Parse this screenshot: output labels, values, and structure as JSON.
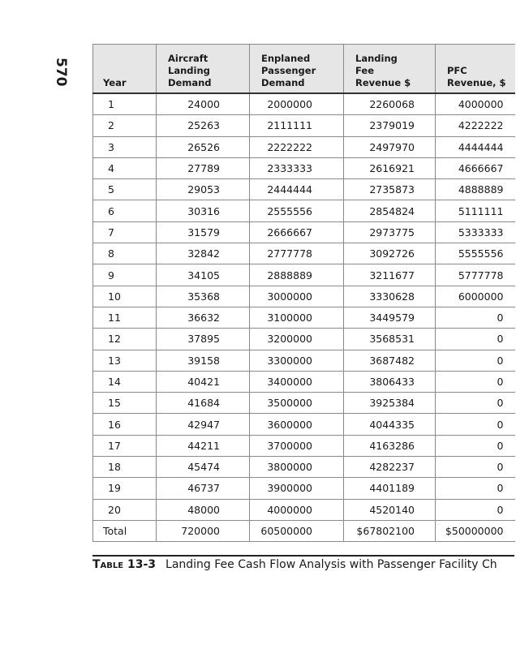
{
  "page_number": "570",
  "table": {
    "headers": [
      "Year",
      "Aircraft\nLanding\nDemand",
      "Enplaned\nPassenger\nDemand",
      "Landing\nFee\nRevenue $",
      "PFC\nRevenue, $"
    ],
    "rows": [
      [
        "1",
        "24000",
        "2000000",
        "2260068",
        "4000000"
      ],
      [
        "2",
        "25263",
        "2111111",
        "2379019",
        "4222222"
      ],
      [
        "3",
        "26526",
        "2222222",
        "2497970",
        "4444444"
      ],
      [
        "4",
        "27789",
        "2333333",
        "2616921",
        "4666667"
      ],
      [
        "5",
        "29053",
        "2444444",
        "2735873",
        "4888889"
      ],
      [
        "6",
        "30316",
        "2555556",
        "2854824",
        "5111111"
      ],
      [
        "7",
        "31579",
        "2666667",
        "2973775",
        "5333333"
      ],
      [
        "8",
        "32842",
        "2777778",
        "3092726",
        "5555556"
      ],
      [
        "9",
        "34105",
        "2888889",
        "3211677",
        "5777778"
      ],
      [
        "10",
        "35368",
        "3000000",
        "3330628",
        "6000000"
      ],
      [
        "11",
        "36632",
        "3100000",
        "3449579",
        "0"
      ],
      [
        "12",
        "37895",
        "3200000",
        "3568531",
        "0"
      ],
      [
        "13",
        "39158",
        "3300000",
        "3687482",
        "0"
      ],
      [
        "14",
        "40421",
        "3400000",
        "3806433",
        "0"
      ],
      [
        "15",
        "41684",
        "3500000",
        "3925384",
        "0"
      ],
      [
        "16",
        "42947",
        "3600000",
        "4044335",
        "0"
      ],
      [
        "17",
        "44211",
        "3700000",
        "4163286",
        "0"
      ],
      [
        "18",
        "45474",
        "3800000",
        "4282237",
        "0"
      ],
      [
        "19",
        "46737",
        "3900000",
        "4401189",
        "0"
      ],
      [
        "20",
        "48000",
        "4000000",
        "4520140",
        "0"
      ]
    ],
    "total": [
      "Total",
      "720000",
      "60500000",
      "$67802100",
      "$50000000"
    ]
  },
  "caption": {
    "label": "Table 13-3",
    "text": "Landing Fee Cash Flow Analysis with Passenger Facility Ch"
  }
}
